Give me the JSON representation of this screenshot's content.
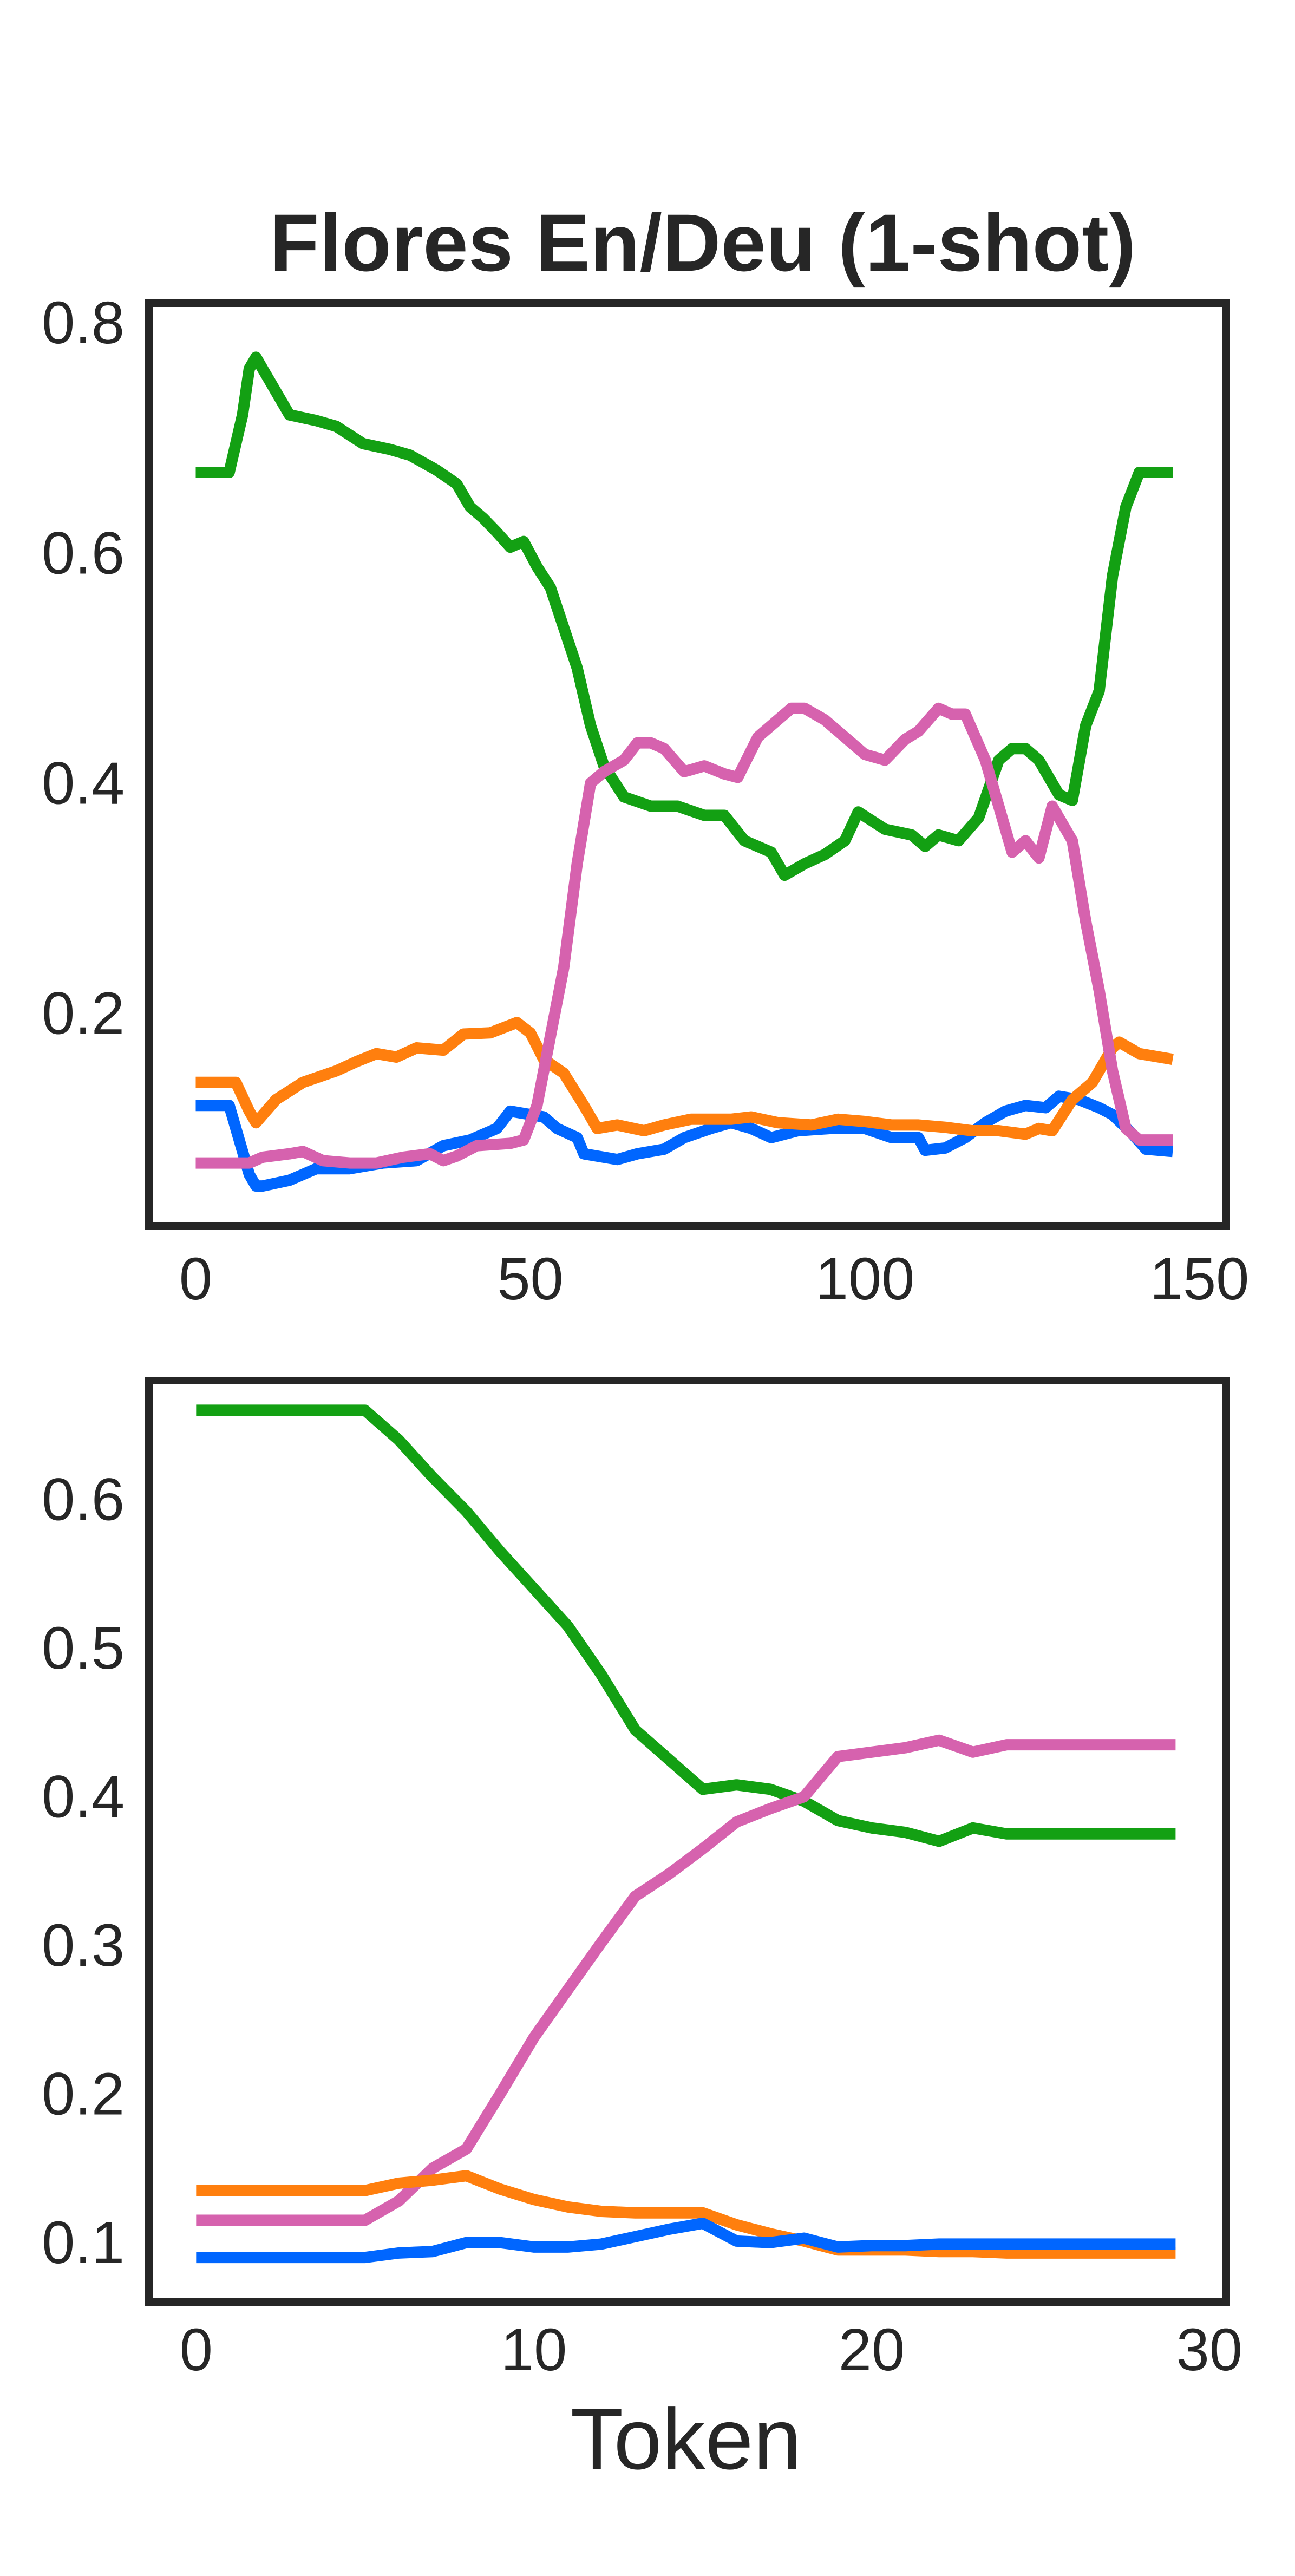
{
  "chart_data": [
    {
      "type": "line",
      "title": "Flores En/Deu (1-shot)",
      "xlabel": "",
      "ylabel": "",
      "xlim": [
        -7,
        154
      ],
      "ylim": [
        0.015,
        0.817
      ],
      "xticks": [
        "0",
        "50",
        "100",
        "150"
      ],
      "yticks": [
        "0.2",
        "0.4",
        "0.6",
        "0.8"
      ],
      "grid": false,
      "series": [
        {
          "color": "#0066ff",
          "points": [
            [
              0,
              0.12
            ],
            [
              5,
              0.12
            ],
            [
              8,
              0.06
            ],
            [
              9,
              0.05
            ],
            [
              10,
              0.05
            ],
            [
              14,
              0.055
            ],
            [
              18,
              0.065
            ],
            [
              23,
              0.065
            ],
            [
              28,
              0.07
            ],
            [
              33,
              0.072
            ],
            [
              37,
              0.085
            ],
            [
              41,
              0.09
            ],
            [
              45,
              0.1
            ],
            [
              47,
              0.115
            ],
            [
              52,
              0.11
            ],
            [
              54,
              0.1
            ],
            [
              57,
              0.092
            ],
            [
              58,
              0.078
            ],
            [
              63,
              0.073
            ],
            [
              66,
              0.078
            ],
            [
              70,
              0.082
            ],
            [
              73,
              0.092
            ],
            [
              77,
              0.1
            ],
            [
              80,
              0.105
            ],
            [
              83,
              0.1
            ],
            [
              86,
              0.092
            ],
            [
              90,
              0.098
            ],
            [
              95,
              0.1
            ],
            [
              100,
              0.1
            ],
            [
              104,
              0.092
            ],
            [
              108,
              0.092
            ],
            [
              109,
              0.081
            ],
            [
              112,
              0.083
            ],
            [
              115,
              0.092
            ],
            [
              118,
              0.105
            ],
            [
              121,
              0.115
            ],
            [
              124,
              0.12
            ],
            [
              127,
              0.118
            ],
            [
              129,
              0.128
            ],
            [
              132,
              0.125
            ],
            [
              135,
              0.118
            ],
            [
              137,
              0.112
            ],
            [
              140,
              0.095
            ],
            [
              142,
              0.082
            ],
            [
              146,
              0.08
            ]
          ]
        },
        {
          "color": "#ff7f0e",
          "points": [
            [
              0,
              0.14
            ],
            [
              6,
              0.14
            ],
            [
              8,
              0.115
            ],
            [
              9,
              0.105
            ],
            [
              12,
              0.125
            ],
            [
              16,
              0.14
            ],
            [
              21,
              0.15
            ],
            [
              24,
              0.158
            ],
            [
              27,
              0.165
            ],
            [
              30,
              0.162
            ],
            [
              33,
              0.17
            ],
            [
              37,
              0.168
            ],
            [
              40,
              0.182
            ],
            [
              44,
              0.183
            ],
            [
              48,
              0.192
            ],
            [
              50,
              0.183
            ],
            [
              52,
              0.16
            ],
            [
              55,
              0.148
            ],
            [
              58,
              0.12
            ],
            [
              60,
              0.1
            ],
            [
              63,
              0.103
            ],
            [
              67,
              0.098
            ],
            [
              70,
              0.103
            ],
            [
              74,
              0.108
            ],
            [
              78,
              0.108
            ],
            [
              80,
              0.108
            ],
            [
              83,
              0.11
            ],
            [
              87,
              0.105
            ],
            [
              92,
              0.103
            ],
            [
              96,
              0.108
            ],
            [
              100,
              0.106
            ],
            [
              104,
              0.103
            ],
            [
              108,
              0.103
            ],
            [
              112,
              0.101
            ],
            [
              116,
              0.098
            ],
            [
              120,
              0.098
            ],
            [
              124,
              0.095
            ],
            [
              126,
              0.1
            ],
            [
              128,
              0.098
            ],
            [
              131,
              0.125
            ],
            [
              134,
              0.14
            ],
            [
              137,
              0.17
            ],
            [
              138,
              0.175
            ],
            [
              141,
              0.165
            ],
            [
              146,
              0.16
            ]
          ]
        },
        {
          "color": "#13a013",
          "points": [
            [
              0,
              0.67
            ],
            [
              5,
              0.67
            ],
            [
              7,
              0.72
            ],
            [
              8,
              0.76
            ],
            [
              9,
              0.77
            ],
            [
              10,
              0.76
            ],
            [
              11,
              0.75
            ],
            [
              14,
              0.72
            ],
            [
              18,
              0.715
            ],
            [
              21,
              0.71
            ],
            [
              25,
              0.695
            ],
            [
              29,
              0.69
            ],
            [
              32,
              0.685
            ],
            [
              36,
              0.672
            ],
            [
              39,
              0.66
            ],
            [
              41,
              0.64
            ],
            [
              43,
              0.63
            ],
            [
              45,
              0.618
            ],
            [
              47,
              0.605
            ],
            [
              49,
              0.61
            ],
            [
              51,
              0.588
            ],
            [
              53,
              0.57
            ],
            [
              55,
              0.535
            ],
            [
              57,
              0.5
            ],
            [
              59,
              0.45
            ],
            [
              61,
              0.415
            ],
            [
              64,
              0.388
            ],
            [
              68,
              0.38
            ],
            [
              72,
              0.38
            ],
            [
              76,
              0.372
            ],
            [
              79,
              0.372
            ],
            [
              82,
              0.35
            ],
            [
              86,
              0.34
            ],
            [
              88,
              0.32
            ],
            [
              91,
              0.33
            ],
            [
              94,
              0.338
            ],
            [
              97,
              0.35
            ],
            [
              99,
              0.375
            ],
            [
              103,
              0.36
            ],
            [
              107,
              0.355
            ],
            [
              109,
              0.345
            ],
            [
              111,
              0.355
            ],
            [
              114,
              0.35
            ],
            [
              117,
              0.37
            ],
            [
              120,
              0.42
            ],
            [
              122,
              0.43
            ],
            [
              124,
              0.43
            ],
            [
              126,
              0.42
            ],
            [
              129,
              0.39
            ],
            [
              131,
              0.385
            ],
            [
              133,
              0.45
            ],
            [
              135,
              0.48
            ],
            [
              137,
              0.58
            ],
            [
              139,
              0.64
            ],
            [
              141,
              0.67
            ],
            [
              146,
              0.67
            ]
          ]
        },
        {
          "color": "#d662ae",
          "points": [
            [
              0,
              0.07
            ],
            [
              8,
              0.07
            ],
            [
              10,
              0.075
            ],
            [
              14,
              0.078
            ],
            [
              16,
              0.08
            ],
            [
              19,
              0.072
            ],
            [
              23,
              0.07
            ],
            [
              27,
              0.07
            ],
            [
              31,
              0.075
            ],
            [
              35,
              0.078
            ],
            [
              37,
              0.072
            ],
            [
              39,
              0.076
            ],
            [
              42,
              0.085
            ],
            [
              47,
              0.087
            ],
            [
              49,
              0.09
            ],
            [
              51,
              0.12
            ],
            [
              53,
              0.18
            ],
            [
              55,
              0.24
            ],
            [
              57,
              0.33
            ],
            [
              59,
              0.4
            ],
            [
              61,
              0.41
            ],
            [
              64,
              0.42
            ],
            [
              66,
              0.435
            ],
            [
              68,
              0.435
            ],
            [
              70,
              0.43
            ],
            [
              73,
              0.41
            ],
            [
              76,
              0.415
            ],
            [
              79,
              0.408
            ],
            [
              81,
              0.405
            ],
            [
              84,
              0.44
            ],
            [
              87,
              0.455
            ],
            [
              89,
              0.465
            ],
            [
              91,
              0.465
            ],
            [
              94,
              0.455
            ],
            [
              97,
              0.44
            ],
            [
              100,
              0.425
            ],
            [
              103,
              0.42
            ],
            [
              106,
              0.438
            ],
            [
              108,
              0.445
            ],
            [
              111,
              0.465
            ],
            [
              113,
              0.46
            ],
            [
              115,
              0.46
            ],
            [
              118,
              0.42
            ],
            [
              120,
              0.38
            ],
            [
              122,
              0.34
            ],
            [
              124,
              0.35
            ],
            [
              126,
              0.335
            ],
            [
              128,
              0.38
            ],
            [
              130,
              0.36
            ],
            [
              131,
              0.35
            ],
            [
              133,
              0.28
            ],
            [
              135,
              0.22
            ],
            [
              137,
              0.15
            ],
            [
              139,
              0.1
            ],
            [
              141,
              0.09
            ],
            [
              146,
              0.09
            ]
          ]
        }
      ]
    },
    {
      "type": "line",
      "title": "",
      "xlabel": "Token",
      "ylabel": "",
      "xlim": [
        -1.4,
        30.5
      ],
      "ylim": [
        0.06,
        0.68
      ],
      "xticks": [
        "0",
        "10",
        "20",
        "30"
      ],
      "yticks": [
        "0.1",
        "0.2",
        "0.3",
        "0.4",
        "0.5",
        "0.6"
      ],
      "grid": false,
      "series": [
        {
          "color": "#13a013",
          "x": [
            0,
            1,
            2,
            3,
            4,
            5,
            6,
            7,
            8,
            9,
            10,
            11,
            12,
            13,
            14,
            15,
            16,
            17,
            18,
            19,
            20,
            21,
            22,
            23,
            24,
            25,
            26,
            27,
            28,
            29
          ],
          "y": [
            0.66,
            0.66,
            0.66,
            0.66,
            0.66,
            0.66,
            0.64,
            0.615,
            0.592,
            0.565,
            0.54,
            0.515,
            0.482,
            0.445,
            0.425,
            0.405,
            0.408,
            0.405,
            0.397,
            0.384,
            0.379,
            0.376,
            0.37,
            0.379,
            0.375,
            0.375,
            0.375,
            0.375,
            0.375,
            0.375
          ]
        },
        {
          "color": "#d662ae",
          "x": [
            0,
            1,
            2,
            3,
            4,
            5,
            6,
            7,
            8,
            9,
            10,
            11,
            12,
            13,
            14,
            15,
            16,
            17,
            18,
            19,
            20,
            21,
            22,
            23,
            24,
            25,
            26,
            27,
            28,
            29
          ],
          "y": [
            0.115,
            0.115,
            0.115,
            0.115,
            0.115,
            0.115,
            0.128,
            0.15,
            0.163,
            0.2,
            0.238,
            0.27,
            0.302,
            0.333,
            0.348,
            0.365,
            0.383,
            0.392,
            0.4,
            0.427,
            0.43,
            0.433,
            0.438,
            0.43,
            0.435,
            0.435,
            0.435,
            0.435,
            0.435,
            0.435
          ]
        },
        {
          "color": "#ff7f0e",
          "x": [
            0,
            1,
            2,
            3,
            4,
            5,
            6,
            7,
            8,
            9,
            10,
            11,
            12,
            13,
            14,
            15,
            16,
            17,
            18,
            19,
            20,
            21,
            22,
            23,
            24,
            25,
            26,
            27,
            28,
            29
          ],
          "y": [
            0.135,
            0.135,
            0.135,
            0.135,
            0.135,
            0.135,
            0.14,
            0.142,
            0.145,
            0.136,
            0.129,
            0.124,
            0.121,
            0.12,
            0.12,
            0.12,
            0.112,
            0.106,
            0.101,
            0.095,
            0.095,
            0.095,
            0.094,
            0.094,
            0.093,
            0.093,
            0.093,
            0.093,
            0.093,
            0.093
          ]
        },
        {
          "color": "#0066ff",
          "x": [
            0,
            1,
            2,
            3,
            4,
            5,
            6,
            7,
            8,
            9,
            10,
            11,
            12,
            13,
            14,
            15,
            16,
            17,
            18,
            19,
            20,
            21,
            22,
            23,
            24,
            25,
            26,
            27,
            28,
            29
          ],
          "y": [
            0.09,
            0.09,
            0.09,
            0.09,
            0.09,
            0.09,
            0.093,
            0.094,
            0.1,
            0.1,
            0.097,
            0.097,
            0.099,
            0.104,
            0.109,
            0.113,
            0.101,
            0.1,
            0.103,
            0.097,
            0.098,
            0.098,
            0.099,
            0.099,
            0.099,
            0.099,
            0.099,
            0.099,
            0.099,
            0.099
          ]
        }
      ]
    }
  ]
}
